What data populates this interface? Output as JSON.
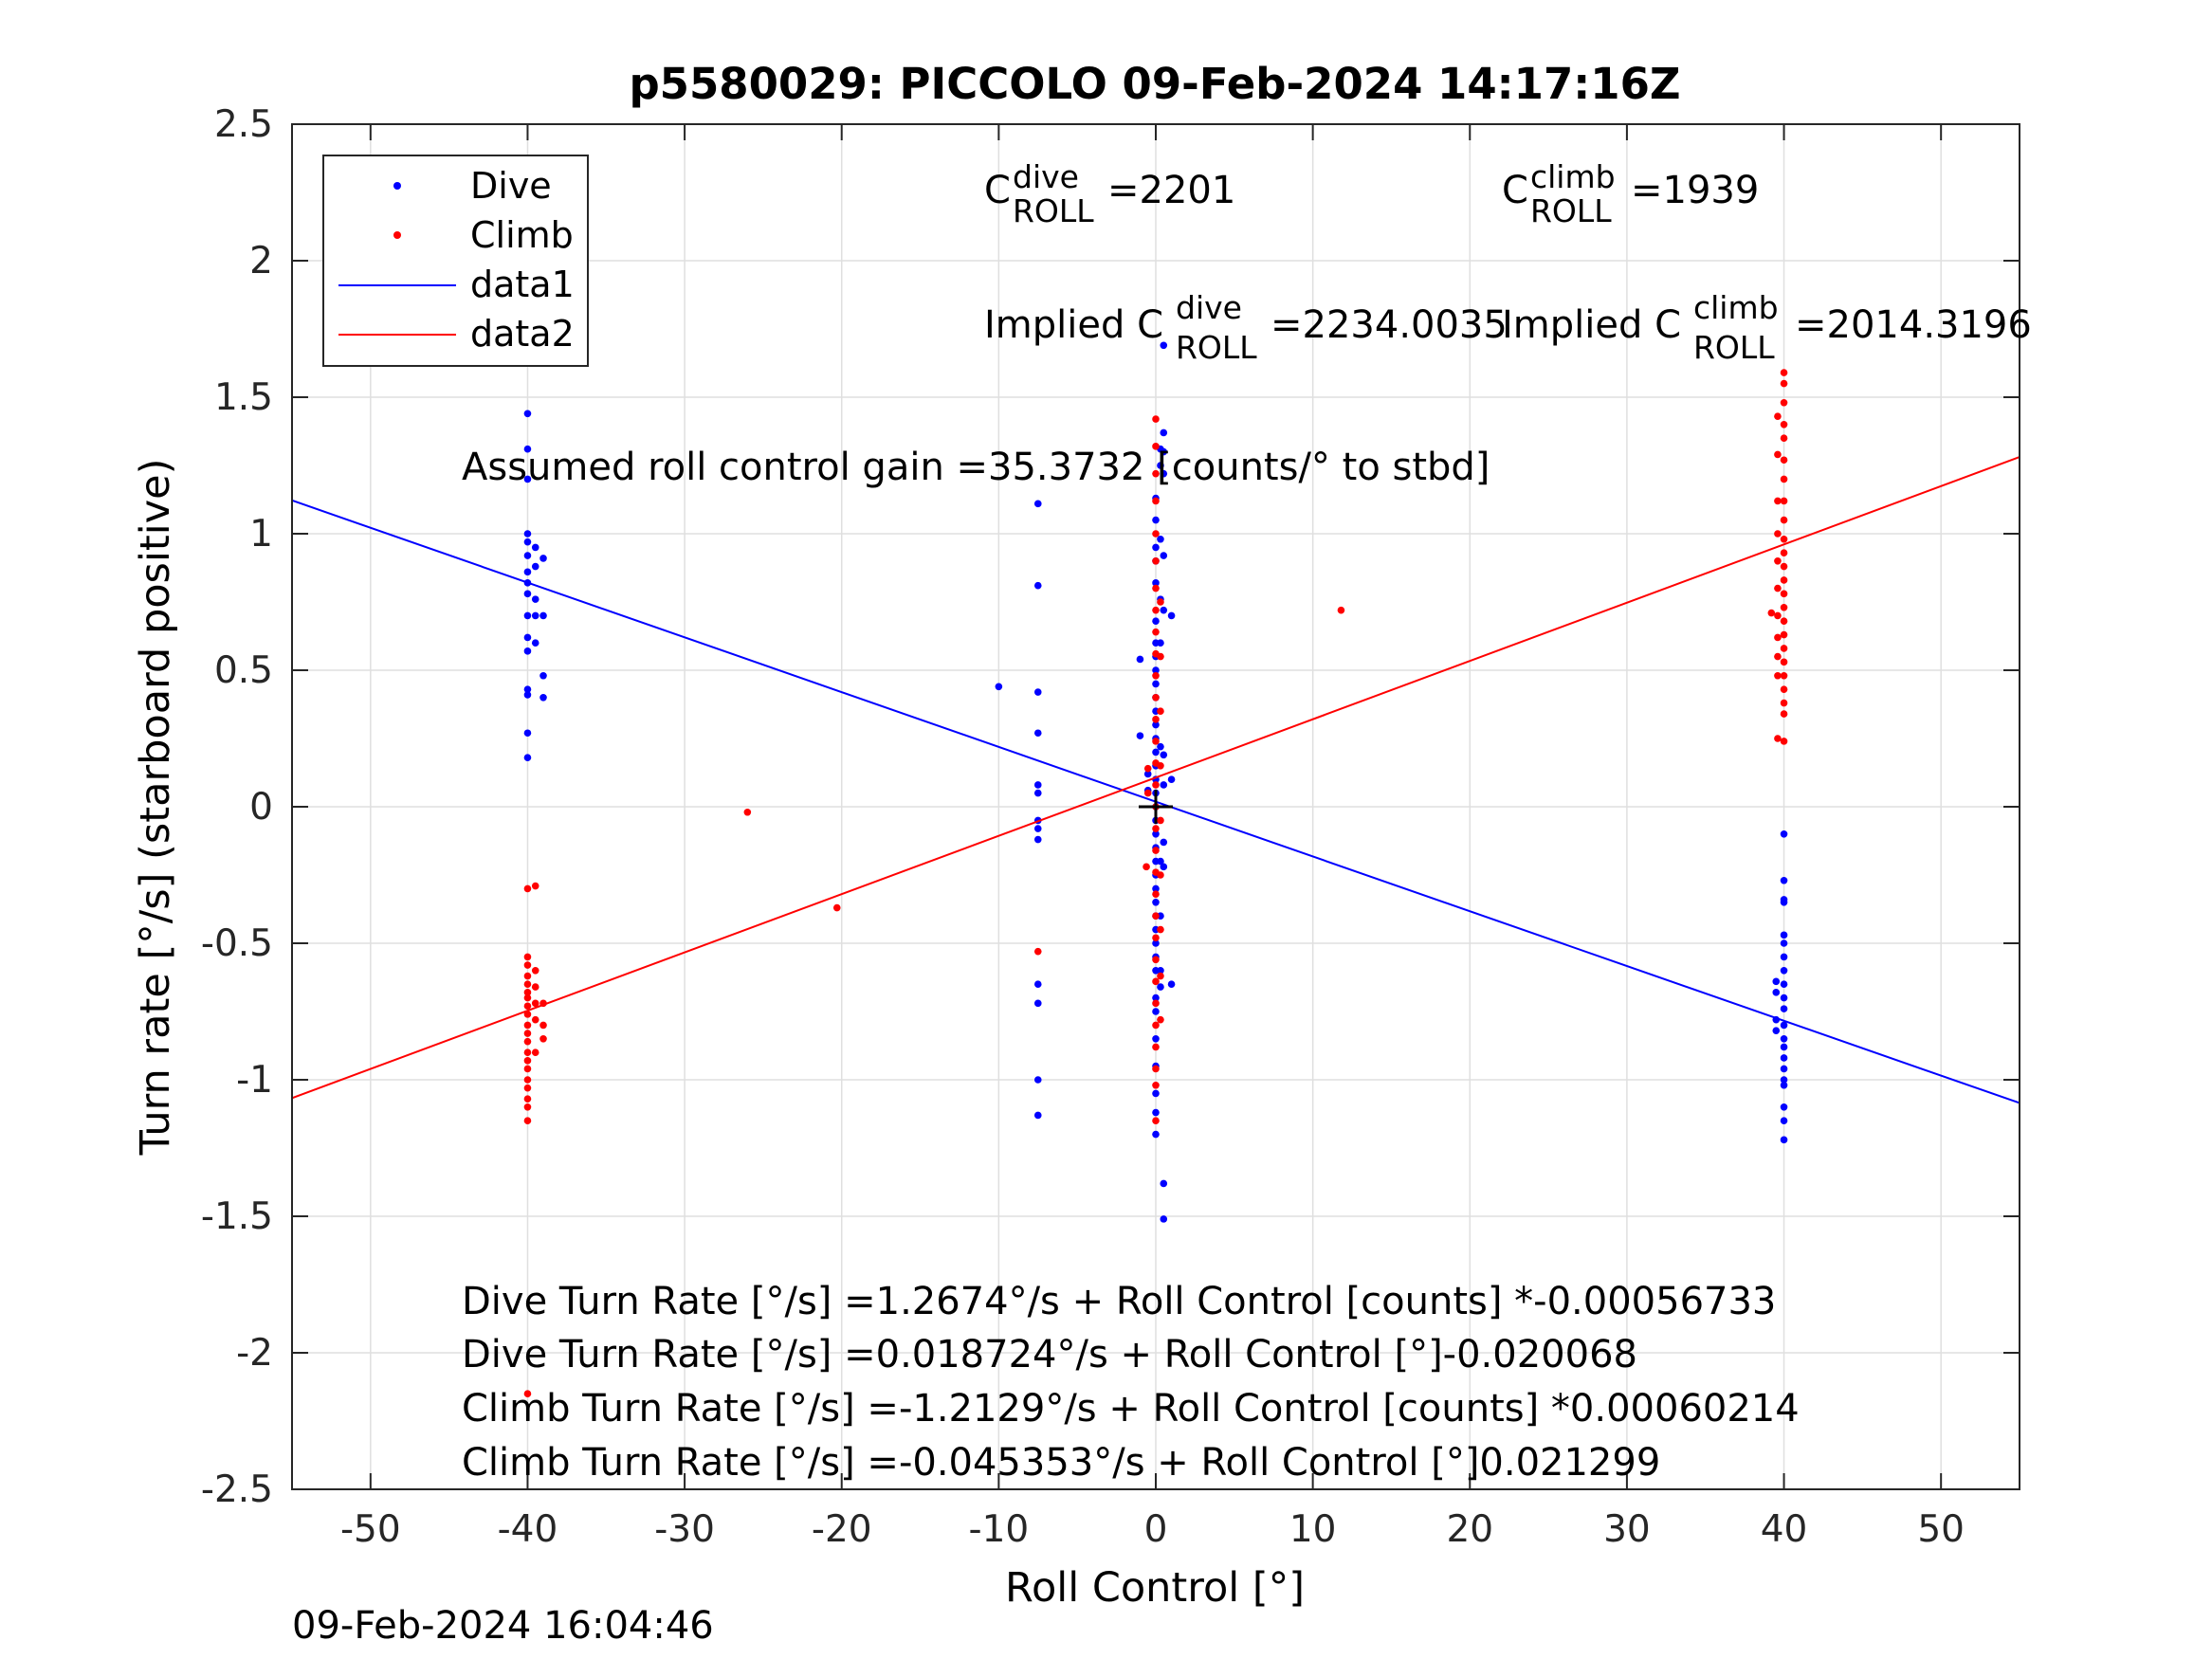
{
  "chart_data": {
    "type": "scatter",
    "title": "p5580029: PICCOLO 09-Feb-2024 14:17:16Z",
    "xlabel": "Roll Control [°]",
    "ylabel": "Turn rate [°/s] (starboard positive)",
    "xlim": [
      -55,
      55
    ],
    "ylim": [
      -2.5,
      2.5
    ],
    "xticks": [
      -50,
      -40,
      -30,
      -20,
      -10,
      0,
      10,
      20,
      30,
      40,
      50
    ],
    "yticks": [
      -2.5,
      -2,
      -1.5,
      -1,
      -0.5,
      0,
      0.5,
      1,
      1.5,
      2,
      2.5
    ],
    "xtick_labels": [
      "-50",
      "-40",
      "-30",
      "-20",
      "-10",
      "0",
      "10",
      "20",
      "30",
      "40",
      "50"
    ],
    "ytick_labels": [
      "-2.5",
      "-2",
      "-1.5",
      "-1",
      "-0.5",
      "0",
      "0.5",
      "1",
      "1.5",
      "2",
      "2.5"
    ],
    "grid": true,
    "legend_position": "top-left",
    "colors": {
      "dive": "#0000ff",
      "climb": "#ff0000",
      "axes": "#262626",
      "grid": "#dfdfdf"
    },
    "series": [
      {
        "name": "Dive",
        "kind": "points",
        "color": "#0000ff",
        "points": [
          [
            -40,
            1.44
          ],
          [
            -40,
            1.31
          ],
          [
            -40,
            1.2
          ],
          [
            -40,
            1.0
          ],
          [
            -40,
            0.97
          ],
          [
            -40,
            0.92
          ],
          [
            -40,
            0.86
          ],
          [
            -40,
            0.82
          ],
          [
            -40,
            0.78
          ],
          [
            -40,
            0.7
          ],
          [
            -40,
            0.62
          ],
          [
            -40,
            0.57
          ],
          [
            -40,
            0.43
          ],
          [
            -40,
            0.41
          ],
          [
            -40,
            0.27
          ],
          [
            -40,
            0.18
          ],
          [
            -39.5,
            0.95
          ],
          [
            -39.5,
            0.88
          ],
          [
            -39.5,
            0.76
          ],
          [
            -39.5,
            0.7
          ],
          [
            -39.5,
            0.6
          ],
          [
            -39,
            0.91
          ],
          [
            -39,
            0.7
          ],
          [
            -39,
            0.48
          ],
          [
            -39,
            0.4
          ],
          [
            -10,
            0.44
          ],
          [
            -7.5,
            1.11
          ],
          [
            -7.5,
            0.81
          ],
          [
            -7.5,
            0.42
          ],
          [
            -7.5,
            0.27
          ],
          [
            -7.5,
            0.08
          ],
          [
            -7.5,
            0.05
          ],
          [
            -7.5,
            -0.05
          ],
          [
            -7.5,
            -0.08
          ],
          [
            -7.5,
            -0.12
          ],
          [
            -7.5,
            -0.65
          ],
          [
            -7.5,
            -0.72
          ],
          [
            -7.5,
            -1.0
          ],
          [
            -7.5,
            -1.13
          ],
          [
            -1,
            0.54
          ],
          [
            -1,
            0.26
          ],
          [
            -0.5,
            0.12
          ],
          [
            -0.5,
            0.06
          ],
          [
            0,
            1.13
          ],
          [
            0,
            1.05
          ],
          [
            0,
            0.95
          ],
          [
            0,
            0.9
          ],
          [
            0,
            0.82
          ],
          [
            0,
            0.68
          ],
          [
            0,
            0.6
          ],
          [
            0,
            0.55
          ],
          [
            0,
            0.5
          ],
          [
            0,
            0.45
          ],
          [
            0,
            0.4
          ],
          [
            0,
            0.35
          ],
          [
            0,
            0.3
          ],
          [
            0,
            0.25
          ],
          [
            0,
            0.2
          ],
          [
            0,
            0.15
          ],
          [
            0,
            0.1
          ],
          [
            0,
            0.05
          ],
          [
            0,
            0.0
          ],
          [
            0,
            -0.05
          ],
          [
            0,
            -0.1
          ],
          [
            0,
            -0.15
          ],
          [
            0,
            -0.2
          ],
          [
            0,
            -0.25
          ],
          [
            0,
            -0.3
          ],
          [
            0,
            -0.35
          ],
          [
            0,
            -0.4
          ],
          [
            0,
            -0.45
          ],
          [
            0,
            -0.5
          ],
          [
            0,
            -0.55
          ],
          [
            0,
            -0.6
          ],
          [
            0,
            -0.7
          ],
          [
            0,
            -0.75
          ],
          [
            0,
            -0.85
          ],
          [
            0,
            -0.95
          ],
          [
            0,
            -1.05
          ],
          [
            0,
            -1.12
          ],
          [
            0,
            -1.2
          ],
          [
            0.3,
            1.31
          ],
          [
            0.3,
            1.25
          ],
          [
            0.3,
            0.98
          ],
          [
            0.3,
            0.76
          ],
          [
            0.3,
            0.6
          ],
          [
            0.3,
            0.22
          ],
          [
            0.3,
            -0.2
          ],
          [
            0.3,
            -0.4
          ],
          [
            0.3,
            -0.6
          ],
          [
            0.3,
            -0.66
          ],
          [
            0.5,
            1.69
          ],
          [
            0.5,
            1.37
          ],
          [
            0.5,
            1.3
          ],
          [
            0.5,
            1.22
          ],
          [
            0.5,
            0.92
          ],
          [
            0.5,
            0.72
          ],
          [
            0.5,
            0.19
          ],
          [
            0.5,
            0.08
          ],
          [
            0.5,
            -0.13
          ],
          [
            0.5,
            -0.22
          ],
          [
            0.5,
            -1.38
          ],
          [
            0.5,
            -1.51
          ],
          [
            1,
            0.7
          ],
          [
            1,
            0.1
          ],
          [
            1,
            -0.65
          ],
          [
            39.5,
            -0.64
          ],
          [
            39.5,
            -0.68
          ],
          [
            39.5,
            -0.78
          ],
          [
            39.5,
            -0.82
          ],
          [
            40,
            -0.1
          ],
          [
            40,
            -0.27
          ],
          [
            40,
            -0.34
          ],
          [
            40,
            -0.35
          ],
          [
            40,
            -0.47
          ],
          [
            40,
            -0.5
          ],
          [
            40,
            -0.55
          ],
          [
            40,
            -0.6
          ],
          [
            40,
            -0.65
          ],
          [
            40,
            -0.7
          ],
          [
            40,
            -0.74
          ],
          [
            40,
            -0.8
          ],
          [
            40,
            -0.85
          ],
          [
            40,
            -0.88
          ],
          [
            40,
            -0.92
          ],
          [
            40,
            -0.96
          ],
          [
            40,
            -1.0
          ],
          [
            40,
            -1.02
          ],
          [
            40,
            -1.1
          ],
          [
            40,
            -1.15
          ],
          [
            40,
            -1.22
          ]
        ]
      },
      {
        "name": "Climb",
        "kind": "points",
        "color": "#ff0000",
        "points": [
          [
            -40,
            -0.3
          ],
          [
            -40,
            -0.55
          ],
          [
            -40,
            -0.58
          ],
          [
            -40,
            -0.62
          ],
          [
            -40,
            -0.65
          ],
          [
            -40,
            -0.68
          ],
          [
            -40,
            -0.7
          ],
          [
            -40,
            -0.73
          ],
          [
            -40,
            -0.76
          ],
          [
            -40,
            -0.8
          ],
          [
            -40,
            -0.83
          ],
          [
            -40,
            -0.86
          ],
          [
            -40,
            -0.9
          ],
          [
            -40,
            -0.93
          ],
          [
            -40,
            -0.96
          ],
          [
            -40,
            -1.0
          ],
          [
            -40,
            -1.03
          ],
          [
            -40,
            -1.07
          ],
          [
            -40,
            -1.1
          ],
          [
            -40,
            -1.15
          ],
          [
            -40,
            -2.15
          ],
          [
            -39.5,
            -0.29
          ],
          [
            -39.5,
            -0.6
          ],
          [
            -39.5,
            -0.66
          ],
          [
            -39.5,
            -0.72
          ],
          [
            -39.5,
            -0.78
          ],
          [
            -39.5,
            -0.9
          ],
          [
            -39,
            -0.72
          ],
          [
            -39,
            -0.8
          ],
          [
            -39,
            -0.85
          ],
          [
            -26,
            -0.02
          ],
          [
            -20.3,
            -0.37
          ],
          [
            -7.5,
            -0.53
          ],
          [
            -0.6,
            -0.22
          ],
          [
            -0.5,
            0.14
          ],
          [
            -0.5,
            0.05
          ],
          [
            0,
            1.42
          ],
          [
            0,
            1.32
          ],
          [
            0,
            1.22
          ],
          [
            0,
            1.12
          ],
          [
            0,
            1.0
          ],
          [
            0,
            0.9
          ],
          [
            0,
            0.8
          ],
          [
            0,
            0.72
          ],
          [
            0,
            0.64
          ],
          [
            0,
            0.56
          ],
          [
            0,
            0.48
          ],
          [
            0,
            0.4
          ],
          [
            0,
            0.32
          ],
          [
            0,
            0.24
          ],
          [
            0,
            0.16
          ],
          [
            0,
            0.08
          ],
          [
            0,
            0.0
          ],
          [
            0,
            -0.08
          ],
          [
            0,
            -0.16
          ],
          [
            0,
            -0.24
          ],
          [
            0,
            -0.32
          ],
          [
            0,
            -0.4
          ],
          [
            0,
            -0.48
          ],
          [
            0,
            -0.56
          ],
          [
            0,
            -0.64
          ],
          [
            0,
            -0.72
          ],
          [
            0,
            -0.8
          ],
          [
            0,
            -0.88
          ],
          [
            0,
            -0.96
          ],
          [
            0,
            -1.02
          ],
          [
            0,
            -1.15
          ],
          [
            0.3,
            0.75
          ],
          [
            0.3,
            0.55
          ],
          [
            0.3,
            0.35
          ],
          [
            0.3,
            0.15
          ],
          [
            0.3,
            -0.05
          ],
          [
            0.3,
            -0.25
          ],
          [
            0.3,
            -0.45
          ],
          [
            0.3,
            -0.62
          ],
          [
            0.3,
            -0.78
          ],
          [
            11.8,
            0.72
          ],
          [
            39.2,
            0.71
          ],
          [
            39.6,
            1.43
          ],
          [
            39.6,
            1.29
          ],
          [
            39.6,
            1.12
          ],
          [
            39.6,
            1.0
          ],
          [
            39.6,
            0.9
          ],
          [
            39.6,
            0.8
          ],
          [
            39.6,
            0.7
          ],
          [
            39.6,
            0.62
          ],
          [
            39.6,
            0.55
          ],
          [
            39.6,
            0.48
          ],
          [
            39.6,
            0.25
          ],
          [
            40,
            1.59
          ],
          [
            40,
            1.55
          ],
          [
            40,
            1.48
          ],
          [
            40,
            1.4
          ],
          [
            40,
            1.35
          ],
          [
            40,
            1.27
          ],
          [
            40,
            1.2
          ],
          [
            40,
            1.12
          ],
          [
            40,
            1.05
          ],
          [
            40,
            0.98
          ],
          [
            40,
            0.93
          ],
          [
            40,
            0.88
          ],
          [
            40,
            0.83
          ],
          [
            40,
            0.78
          ],
          [
            40,
            0.73
          ],
          [
            40,
            0.68
          ],
          [
            40,
            0.63
          ],
          [
            40,
            0.58
          ],
          [
            40,
            0.53
          ],
          [
            40,
            0.48
          ],
          [
            40,
            0.43
          ],
          [
            40,
            0.38
          ],
          [
            40,
            0.34
          ],
          [
            40,
            0.24
          ]
        ]
      },
      {
        "name": "data1",
        "kind": "line",
        "color": "#0000ff",
        "points": [
          [
            -55,
            1.122
          ],
          [
            55,
            -1.085
          ]
        ]
      },
      {
        "name": "data2",
        "kind": "line",
        "color": "#ff0000",
        "points": [
          [
            -55,
            -1.067
          ],
          [
            55,
            1.281
          ]
        ]
      }
    ],
    "center_marker": {
      "x": 0,
      "y": 0,
      "color": "#000000"
    },
    "annotations": {
      "c_dive_main": "C",
      "c_dive_sup": "dive",
      "c_dive_sub": "ROLL",
      "c_dive_value": "=2201",
      "c_climb_main": "C",
      "c_climb_sup": "climb",
      "c_climb_sub": "ROLL",
      "c_climb_value": "=1939",
      "implied_dive_prefix": "Implied C",
      "implied_dive_sup": "dive",
      "implied_dive_sub": "ROLL",
      "implied_dive_value": "=2234.0035",
      "implied_climb_prefix": "Implied C",
      "implied_climb_sup": "climb",
      "implied_climb_sub": "ROLL",
      "implied_climb_value": "=2014.3196",
      "gain": "Assumed roll control gain =35.3732 [counts/° to stbd]",
      "eq1": "Dive Turn Rate [°/s] =1.2674°/s + Roll Control [counts] *-0.00056733",
      "eq2": "Dive Turn Rate [°/s] =0.018724°/s + Roll Control [°]-0.020068",
      "eq3": "Climb Turn Rate [°/s] =-1.2129°/s + Roll Control [counts] *0.00060214",
      "eq4": "Climb Turn Rate [°/s] =-0.045353°/s + Roll Control [°]0.021299"
    },
    "timestamp": "09-Feb-2024 16:04:46"
  }
}
